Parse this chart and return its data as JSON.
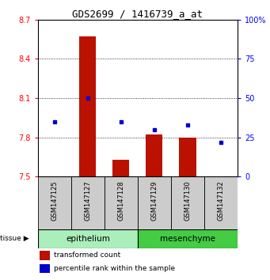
{
  "title": "GDS2699 / 1416739_a_at",
  "samples": [
    "GSM147125",
    "GSM147127",
    "GSM147128",
    "GSM147129",
    "GSM147130",
    "GSM147132"
  ],
  "transformed_counts": [
    7.5,
    8.57,
    7.63,
    7.82,
    7.8,
    7.5
  ],
  "percentile_ranks": [
    35,
    50,
    35,
    30,
    33,
    22
  ],
  "ylim_left": [
    7.5,
    8.7
  ],
  "ylim_right": [
    0,
    100
  ],
  "yticks_left": [
    7.5,
    7.8,
    8.1,
    8.4,
    8.7
  ],
  "yticks_right": [
    0,
    25,
    50,
    75,
    100
  ],
  "bar_color": "#BB1100",
  "dot_color": "#0000CC",
  "bar_width": 0.5,
  "background_color": "#ffffff",
  "label_bg_color": "#cccccc",
  "epithelium_color": "#aaeebb",
  "mesenchyme_color": "#44cc44",
  "epithelium_n": 3,
  "mesenchyme_n": 3
}
